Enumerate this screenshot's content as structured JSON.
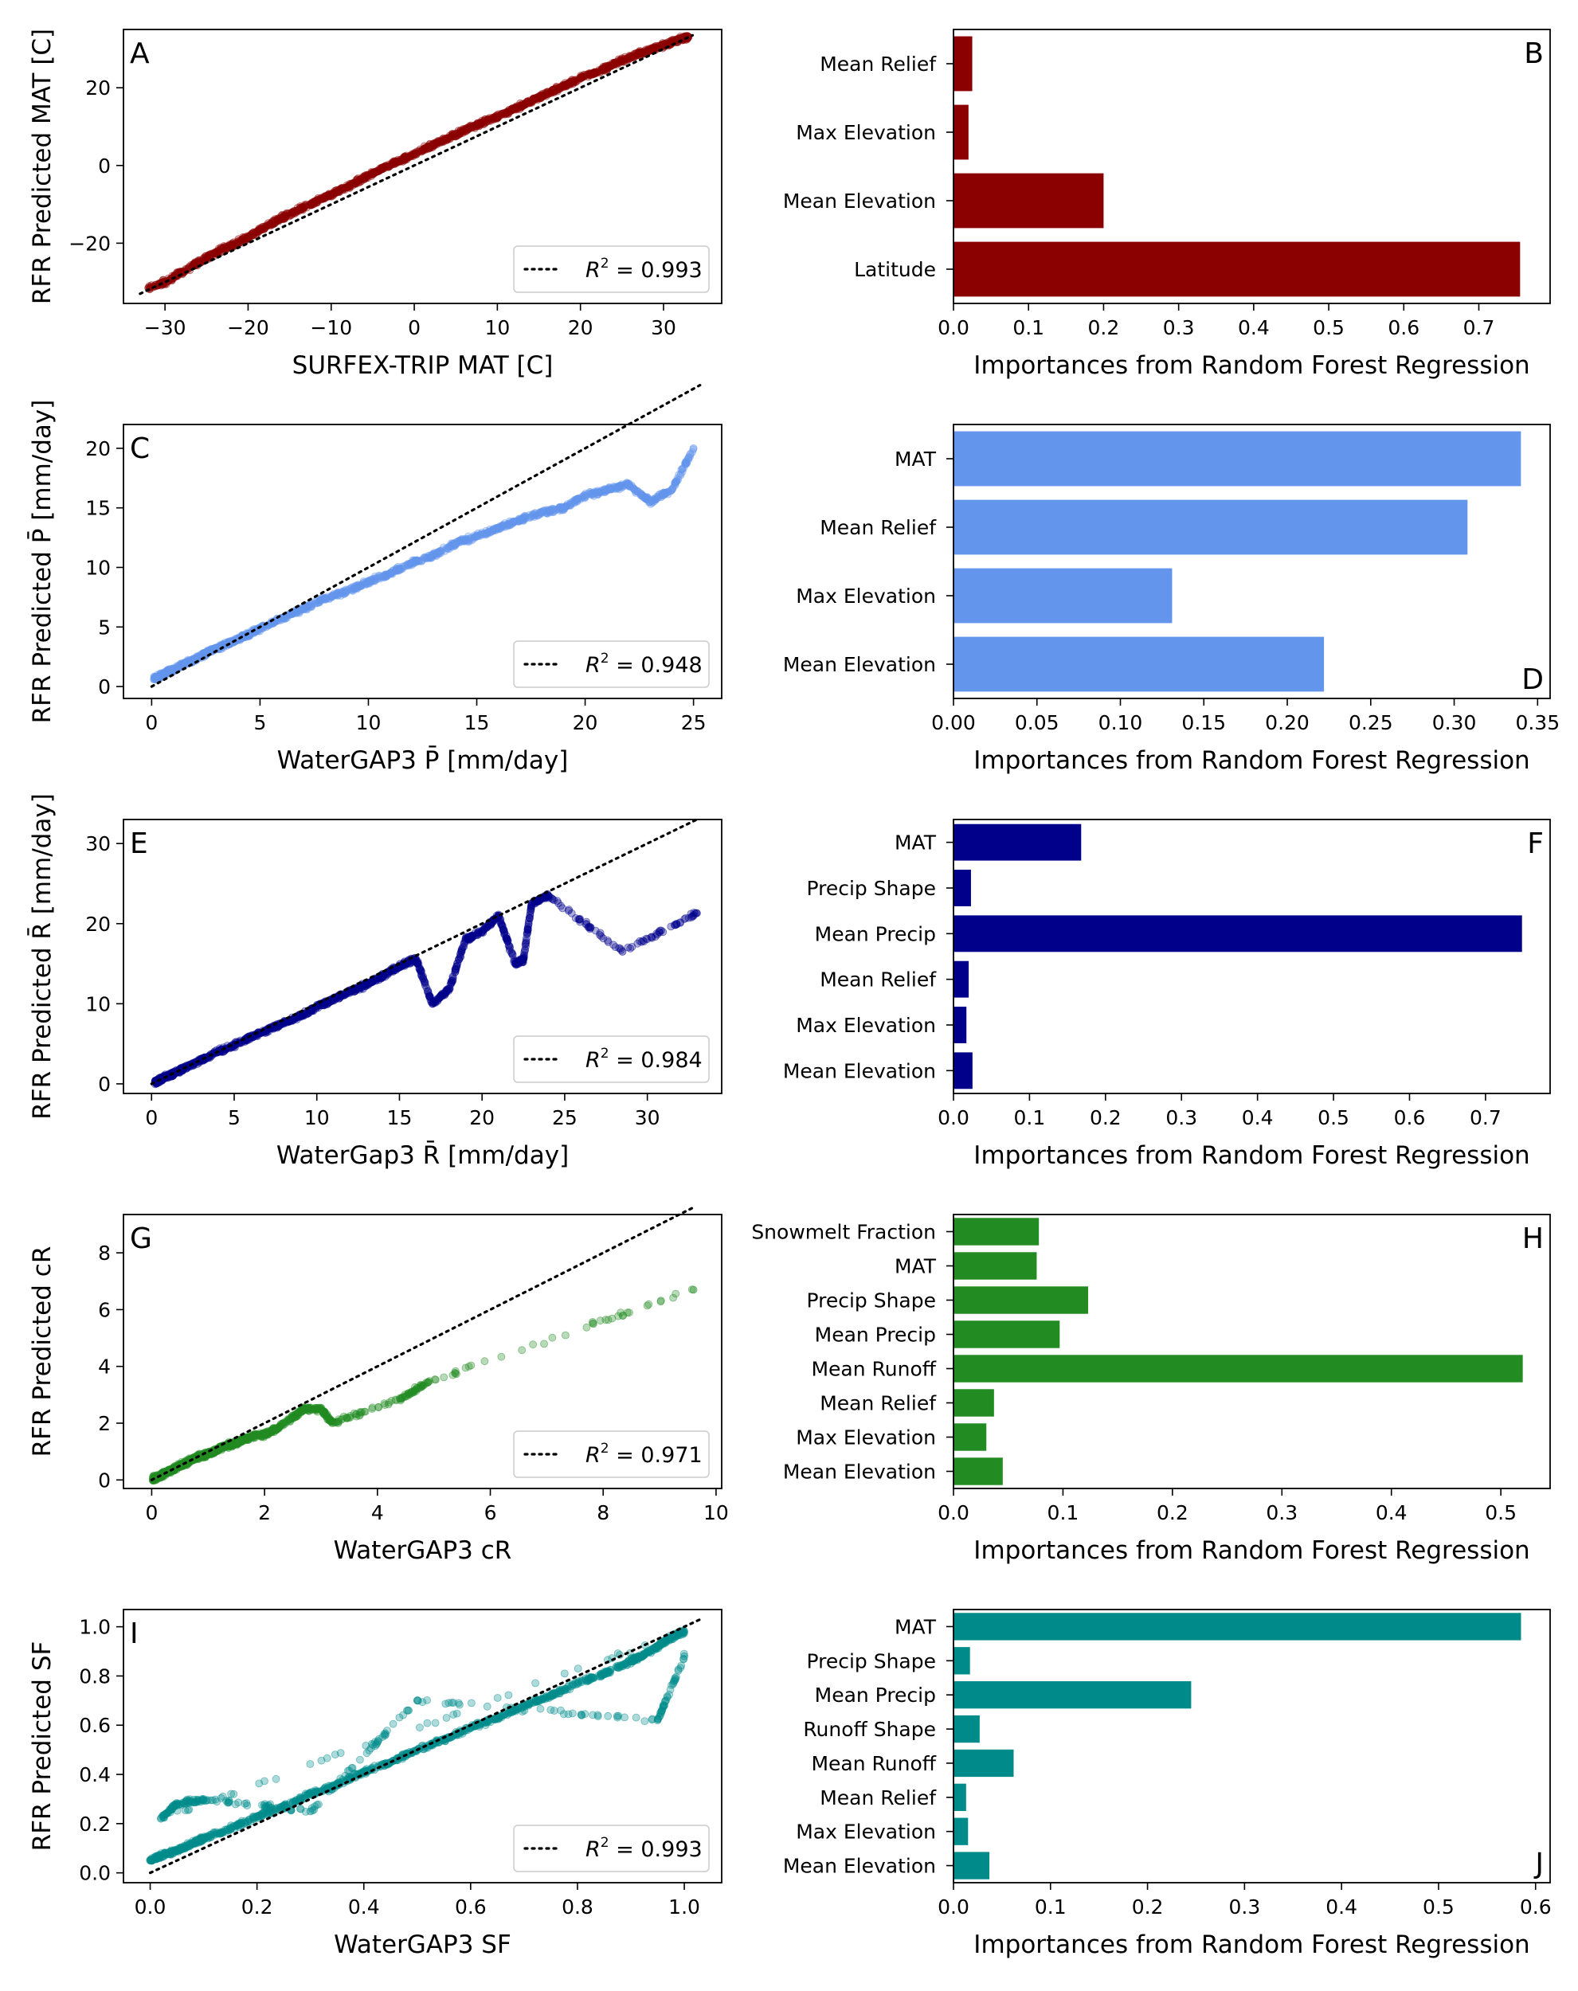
{
  "chart_data": [
    {
      "panel": "A",
      "type": "scatter",
      "xlabel": "SURFEX-TRIP MAT [C]",
      "ylabel": "RFR Predicted MAT [C]",
      "xlim": [
        -35,
        37
      ],
      "ylim": [
        -35.5,
        35
      ],
      "xticks": [
        -30,
        -20,
        -10,
        0,
        10,
        20,
        30
      ],
      "xtick_labels": [
        "−30",
        "−20",
        "−10",
        "0",
        "10",
        "20",
        "30"
      ],
      "yticks": [
        -20,
        0,
        20
      ],
      "ytick_labels": [
        "−20",
        "0",
        "20"
      ],
      "color": "#8b0000",
      "series": [
        {
          "x": [
            -32,
            -30,
            -28,
            -26,
            -24,
            -22,
            -20,
            -18,
            -16,
            -14,
            -12,
            -10,
            -8,
            -6,
            -4,
            -2,
            0,
            2,
            4,
            6,
            8,
            10,
            12,
            14,
            16,
            18,
            20,
            22,
            24,
            26,
            28,
            30,
            32,
            33
          ],
          "y": [
            -31.5,
            -30,
            -27.5,
            -25,
            -22.5,
            -20.5,
            -18.5,
            -16,
            -13.5,
            -11.5,
            -9.5,
            -7.5,
            -5.5,
            -3,
            -1,
            1,
            3,
            5,
            7,
            9,
            11,
            12.5,
            14.5,
            16.5,
            18.5,
            20.5,
            22.5,
            24,
            26,
            28,
            29.5,
            31,
            32.5,
            33
          ]
        }
      ],
      "identity_line": [
        -33,
        33.5
      ],
      "legend": {
        "line_style": "dotted",
        "label_math": "R",
        "label_sup": "2",
        "label_rest": " = 0.993"
      }
    },
    {
      "panel": "B",
      "type": "bar",
      "orientation": "horizontal",
      "xlabel": "Importances from Random Forest Regression",
      "xlim": [
        0,
        0.795
      ],
      "xticks": [
        0,
        0.1,
        0.2,
        0.3,
        0.4,
        0.5,
        0.6,
        0.7
      ],
      "xtick_labels": [
        "0.0",
        "0.1",
        "0.2",
        "0.3",
        "0.4",
        "0.5",
        "0.6",
        "0.7"
      ],
      "color": "#8b0000",
      "categories": [
        "Mean Relief",
        "Max Elevation",
        "Mean Elevation",
        "Latitude"
      ],
      "values": [
        0.025,
        0.02,
        0.2,
        0.755
      ]
    },
    {
      "panel": "C",
      "type": "scatter",
      "xlabel": "WaterGAP3 P̄ [mm/day]",
      "ylabel": "RFR Predicted P̄ [mm/day]",
      "xlim": [
        -1.3,
        26.3
      ],
      "ylim": [
        -1,
        22
      ],
      "xticks": [
        0,
        5,
        10,
        15,
        20,
        25
      ],
      "xtick_labels": [
        "0",
        "5",
        "10",
        "15",
        "20",
        "25"
      ],
      "yticks": [
        0,
        5,
        10,
        15,
        20
      ],
      "ytick_labels": [
        "0",
        "5",
        "10",
        "15",
        "20"
      ],
      "color": "#6495ed",
      "series": [
        {
          "x": [
            0.1,
            0.3,
            0.5,
            0.8,
            1,
            1.5,
            2,
            2.5,
            3,
            3.5,
            4,
            4.5,
            5,
            6,
            7,
            8,
            9,
            10,
            11,
            12,
            13,
            14,
            15,
            16,
            17,
            18,
            19,
            20,
            21,
            22,
            23,
            24,
            25
          ],
          "y": [
            0.6,
            0.8,
            1,
            1.3,
            1.4,
            1.9,
            2.3,
            2.8,
            3.2,
            3.6,
            4,
            4.4,
            4.9,
            5.7,
            6.5,
            7.4,
            8,
            8.8,
            9.5,
            10.4,
            11,
            12,
            12.6,
            13.3,
            14,
            14.6,
            15,
            16,
            16.5,
            17,
            15.5,
            16.5,
            20
          ]
        }
      ],
      "identity_line": [
        0,
        25.3
      ],
      "legend": {
        "line_style": "dotted",
        "label_math": "R",
        "label_sup": "2",
        "label_rest": " = 0.948"
      }
    },
    {
      "panel": "D",
      "type": "bar",
      "orientation": "horizontal",
      "xlabel": "Importances from Random Forest Regression",
      "xlim": [
        0,
        0.3575
      ],
      "xticks": [
        0,
        0.05,
        0.1,
        0.15,
        0.2,
        0.25,
        0.3,
        0.35
      ],
      "xtick_labels": [
        "0.00",
        "0.05",
        "0.10",
        "0.15",
        "0.20",
        "0.25",
        "0.30",
        "0.35"
      ],
      "color": "#6495ed",
      "categories": [
        "MAT",
        "Mean Relief",
        "Max Elevation",
        "Mean Elevation"
      ],
      "values": [
        0.34,
        0.308,
        0.131,
        0.222
      ]
    },
    {
      "panel": "E",
      "type": "scatter",
      "xlabel": "WaterGap3 R̄ [mm/day]",
      "ylabel": "RFR Predicted R̄ [mm/day]",
      "xlim": [
        -1.7,
        34.5
      ],
      "ylim": [
        -1.2,
        33
      ],
      "xticks": [
        0,
        5,
        10,
        15,
        20,
        25,
        30
      ],
      "xtick_labels": [
        "0",
        "5",
        "10",
        "15",
        "20",
        "25",
        "30"
      ],
      "yticks": [
        0,
        10,
        20,
        30
      ],
      "ytick_labels": [
        "0",
        "10",
        "20",
        "30"
      ],
      "color": "#00008b",
      "series": [
        {
          "x": [
            0.2,
            0.5,
            1,
            1.5,
            2,
            3,
            4,
            5,
            6,
            7,
            8,
            9,
            10,
            11,
            12,
            13,
            14,
            15,
            16,
            17,
            18,
            19,
            20,
            21,
            22,
            22.5,
            23,
            24,
            28.5,
            33
          ],
          "y": [
            0.2,
            0.5,
            1,
            1.5,
            2,
            3,
            4,
            4.8,
            5.8,
            6.7,
            7.6,
            8.5,
            9.6,
            10.6,
            11.5,
            12.4,
            13.5,
            14.7,
            15.6,
            10,
            11.8,
            18,
            19,
            21,
            15,
            15.5,
            22.5,
            23.5,
            16.5,
            21.3
          ]
        }
      ],
      "identity_line": [
        0,
        33
      ],
      "legend": {
        "line_style": "dotted",
        "label_math": "R",
        "label_sup": "2",
        "label_rest": " = 0.984"
      }
    },
    {
      "panel": "F",
      "type": "bar",
      "orientation": "horizontal",
      "xlabel": "Importances from Random Forest Regression",
      "xlim": [
        0,
        0.785
      ],
      "xticks": [
        0,
        0.1,
        0.2,
        0.3,
        0.4,
        0.5,
        0.6,
        0.7
      ],
      "xtick_labels": [
        "0.0",
        "0.1",
        "0.2",
        "0.3",
        "0.4",
        "0.5",
        "0.6",
        "0.7"
      ],
      "color": "#00008b",
      "categories": [
        "MAT",
        "Precip Shape",
        "Mean Precip",
        "Mean Relief",
        "Max Elevation",
        "Mean Elevation"
      ],
      "values": [
        0.168,
        0.023,
        0.748,
        0.02,
        0.017,
        0.025
      ]
    },
    {
      "panel": "G",
      "type": "scatter",
      "xlabel": "WaterGAP3 cR",
      "ylabel": "RFR Predicted cR",
      "xlim": [
        -0.5,
        10.1
      ],
      "ylim": [
        -0.3,
        9.35
      ],
      "xticks": [
        0,
        2,
        4,
        6,
        8,
        10
      ],
      "xtick_labels": [
        "0",
        "2",
        "4",
        "6",
        "8",
        "10"
      ],
      "yticks": [
        0,
        2,
        4,
        6,
        8
      ],
      "ytick_labels": [
        "0",
        "2",
        "4",
        "6",
        "8"
      ],
      "color": "#228b22",
      "series": [
        {
          "x": [
            0.02,
            0.1,
            0.2,
            0.3,
            0.4,
            0.5,
            0.6,
            0.7,
            0.8,
            0.9,
            1,
            1.1,
            1.2,
            1.3,
            1.4,
            1.5,
            1.6,
            1.8,
            2,
            2.2,
            2.5,
            2.7,
            3,
            3.2,
            4.4,
            4.9,
            9.6
          ],
          "y": [
            0.03,
            0.1,
            0.2,
            0.3,
            0.4,
            0.5,
            0.6,
            0.7,
            0.8,
            0.85,
            0.95,
            1,
            1.1,
            1.2,
            1.25,
            1.3,
            1.4,
            1.55,
            1.6,
            1.8,
            2.2,
            2.5,
            2.5,
            2,
            2.85,
            3.45,
            6.7
          ]
        }
      ],
      "identity_line": [
        0,
        9.6
      ],
      "legend": {
        "line_style": "dotted",
        "label_math": "R",
        "label_sup": "2",
        "label_rest": " = 0.971"
      }
    },
    {
      "panel": "H",
      "type": "bar",
      "orientation": "horizontal",
      "xlabel": "Importances from Random Forest Regression",
      "xlim": [
        0,
        0.545
      ],
      "xticks": [
        0,
        0.1,
        0.2,
        0.3,
        0.4,
        0.5
      ],
      "xtick_labels": [
        "0.0",
        "0.1",
        "0.2",
        "0.3",
        "0.4",
        "0.5"
      ],
      "color": "#228b22",
      "categories": [
        "Snowmelt Fraction",
        "MAT",
        "Precip Shape",
        "Mean Precip",
        "Mean Runoff",
        "Mean Relief",
        "Max Elevation",
        "Mean Elevation"
      ],
      "values": [
        0.078,
        0.076,
        0.123,
        0.097,
        0.52,
        0.037,
        0.03,
        0.045
      ]
    },
    {
      "panel": "I",
      "type": "scatter",
      "xlabel": "WaterGAP3 SF",
      "ylabel": "RFR Predicted SF",
      "xlim": [
        -0.05,
        1.07
      ],
      "ylim": [
        -0.04,
        1.07
      ],
      "xticks": [
        0,
        0.2,
        0.4,
        0.6,
        0.8,
        1.0
      ],
      "xtick_labels": [
        "0.0",
        "0.2",
        "0.4",
        "0.6",
        "0.8",
        "1.0"
      ],
      "yticks": [
        0,
        0.2,
        0.4,
        0.6,
        0.8,
        1.0
      ],
      "ytick_labels": [
        "0.0",
        "0.2",
        "0.4",
        "0.6",
        "0.8",
        "1.0"
      ],
      "color": "#008b8b",
      "series": [
        {
          "x": [
            0,
            0.02,
            0.05,
            0.08,
            0.1,
            0.15,
            0.2,
            0.25,
            0.3,
            0.35,
            0.4,
            0.45,
            0.5,
            0.55,
            0.6,
            0.65,
            0.7,
            0.75,
            0.8,
            0.85,
            0.9,
            0.92,
            0.95,
            0.97,
            1.0,
            0.02,
            0.05,
            0.1,
            0.3,
            0.5,
            0.95,
            1.0
          ],
          "y": [
            0.05,
            0.07,
            0.09,
            0.12,
            0.14,
            0.18,
            0.23,
            0.27,
            0.32,
            0.36,
            0.41,
            0.45,
            0.5,
            0.54,
            0.59,
            0.63,
            0.68,
            0.72,
            0.77,
            0.81,
            0.86,
            0.88,
            0.92,
            0.95,
            0.98,
            0.22,
            0.28,
            0.3,
            0.25,
            0.7,
            0.62,
            0.88
          ]
        }
      ],
      "identity_line": [
        0,
        1.03
      ],
      "legend": {
        "line_style": "dotted",
        "label_math": "R",
        "label_sup": "2",
        "label_rest": " = 0.993"
      }
    },
    {
      "panel": "J",
      "type": "bar",
      "orientation": "horizontal",
      "xlabel": "Importances from Random Forest Regression",
      "xlim": [
        0,
        0.615
      ],
      "xticks": [
        0,
        0.1,
        0.2,
        0.3,
        0.4,
        0.5,
        0.6
      ],
      "xtick_labels": [
        "0.0",
        "0.1",
        "0.2",
        "0.3",
        "0.4",
        "0.5",
        "0.6"
      ],
      "color": "#008b8b",
      "categories": [
        "MAT",
        "Precip Shape",
        "Mean Precip",
        "Runoff Shape",
        "Mean Runoff",
        "Mean Relief",
        "Max Elevation",
        "Mean Elevation"
      ],
      "values": [
        0.585,
        0.017,
        0.245,
        0.027,
        0.062,
        0.013,
        0.015,
        0.037
      ]
    }
  ]
}
